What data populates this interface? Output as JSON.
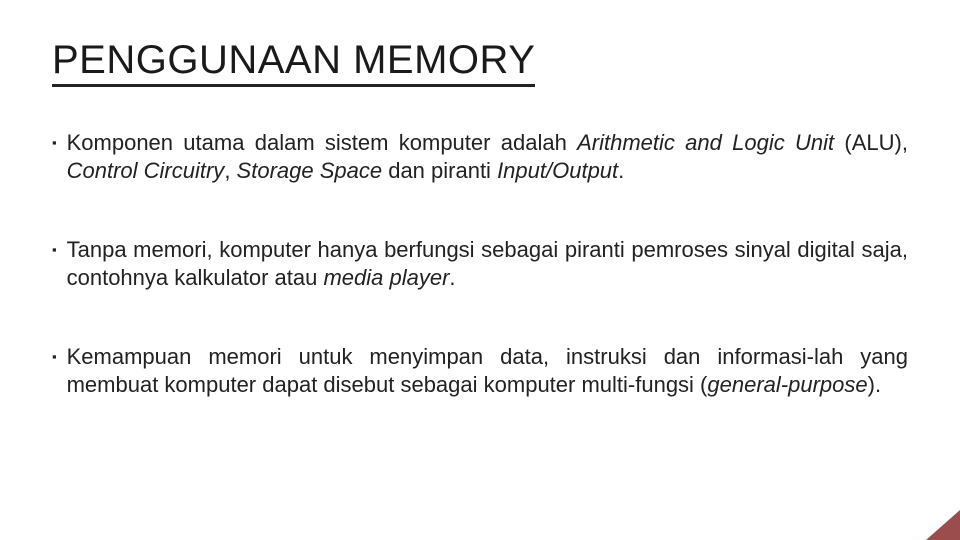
{
  "title": {
    "text": "PENGGUNAAN MEMORY",
    "fontsize": 40,
    "color": "#1a1a1a",
    "underline_color": "#222222",
    "underline_thickness": 3
  },
  "body": {
    "fontsize": 22,
    "color": "#222222",
    "line_height": 1.25,
    "spacing_between_bullets": 52,
    "bullet_marker": "▪"
  },
  "bullets": [
    {
      "runs": [
        {
          "t": "Komponen utama dalam sistem komputer adalah ",
          "i": false
        },
        {
          "t": "Arithmetic and Logic Unit",
          "i": true
        },
        {
          "t": " (ALU), ",
          "i": false
        },
        {
          "t": "Control Circuitry",
          "i": true
        },
        {
          "t": ", ",
          "i": false
        },
        {
          "t": "Storage Space",
          "i": true
        },
        {
          "t": " dan piranti ",
          "i": false
        },
        {
          "t": "Input/Output",
          "i": true
        },
        {
          "t": ".",
          "i": false
        }
      ]
    },
    {
      "runs": [
        {
          "t": "Tanpa memori, komputer hanya berfungsi sebagai piranti pemroses sinyal digital saja, contohnya kalkulator atau ",
          "i": false
        },
        {
          "t": "media player",
          "i": true
        },
        {
          "t": ".",
          "i": false
        }
      ]
    },
    {
      "runs": [
        {
          "t": "Kemampuan memori untuk menyimpan data, instruksi dan informasi-lah yang membuat komputer dapat disebut sebagai komputer multi-fungsi (",
          "i": false
        },
        {
          "t": "general-purpose",
          "i": true
        },
        {
          "t": ").",
          "i": false
        }
      ]
    }
  ],
  "decor": {
    "corner_color": "#8a2d2d"
  }
}
